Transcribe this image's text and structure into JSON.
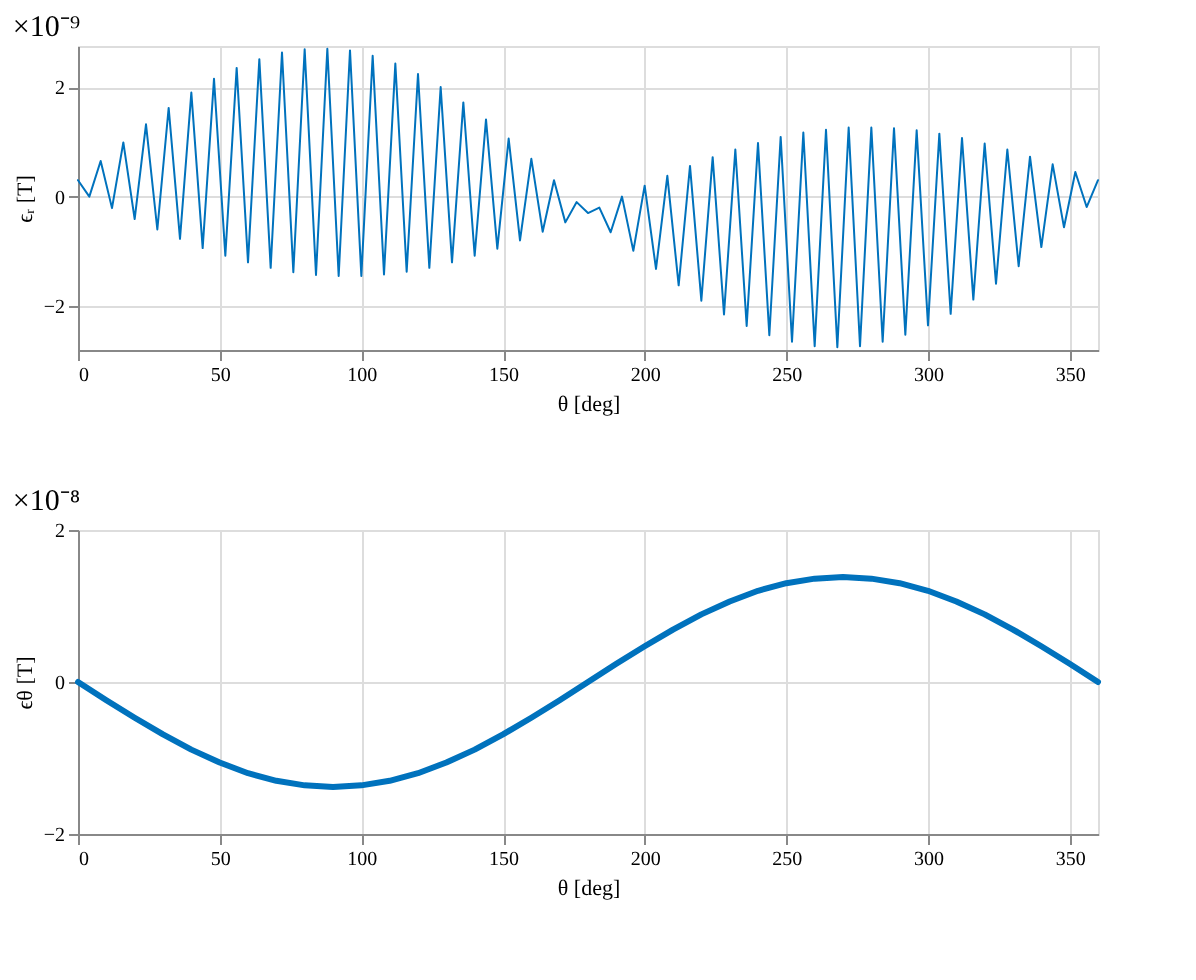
{
  "chart_data": [
    {
      "type": "line",
      "xlabel": "θ [deg]",
      "ylabel": "ϵᵣ [T]",
      "annotations": [
        "×10⁻⁹"
      ],
      "xlim": [
        0,
        360
      ],
      "xticks": [
        0,
        50,
        100,
        150,
        200,
        250,
        300,
        350
      ],
      "ylim": [
        -2.8,
        2.75
      ],
      "yticks": [
        -2,
        0,
        2
      ],
      "grid": true,
      "x": [
        0,
        4,
        8,
        12,
        16,
        20,
        24,
        28,
        32,
        36,
        40,
        44,
        48,
        52,
        56,
        60,
        64,
        68,
        72,
        76,
        80,
        84,
        88,
        92,
        96,
        100,
        104,
        108,
        112,
        116,
        120,
        124,
        128,
        132,
        136,
        140,
        144,
        148,
        152,
        156,
        160,
        164,
        168,
        172,
        176,
        180,
        184,
        188,
        192,
        196,
        200,
        204,
        208,
        212,
        216,
        220,
        224,
        228,
        232,
        236,
        240,
        244,
        248,
        252,
        256,
        260,
        264,
        268,
        272,
        276,
        280,
        284,
        288,
        292,
        296,
        300,
        304,
        308,
        312,
        316,
        320,
        324,
        328,
        332,
        336,
        340,
        344,
        348,
        352,
        356,
        360
      ],
      "series": [
        {
          "color": "#0072bd",
          "values": [
            0.3,
            0.0,
            0.65,
            -0.21,
            0.99,
            -0.41,
            1.32,
            -0.6,
            1.62,
            -0.77,
            1.9,
            -0.94,
            2.15,
            -1.08,
            2.35,
            -1.2,
            2.51,
            -1.3,
            2.63,
            -1.38,
            2.69,
            -1.43,
            2.7,
            -1.45,
            2.67,
            -1.45,
            2.57,
            -1.42,
            2.43,
            -1.37,
            2.24,
            -1.3,
            2.0,
            -1.2,
            1.72,
            -1.08,
            1.41,
            -0.95,
            1.06,
            -0.8,
            0.69,
            -0.64,
            0.3,
            -0.47,
            -0.1,
            -0.3,
            -0.2,
            -0.65,
            0.0,
            -0.99,
            0.2,
            -1.32,
            0.38,
            -1.62,
            0.56,
            -1.9,
            0.72,
            -2.15,
            0.86,
            -2.36,
            0.98,
            -2.53,
            1.09,
            -2.65,
            1.17,
            -2.73,
            1.22,
            -2.75,
            1.26,
            -2.73,
            1.26,
            -2.65,
            1.25,
            -2.52,
            1.21,
            -2.35,
            1.15,
            -2.14,
            1.07,
            -1.88,
            0.97,
            -1.59,
            0.86,
            -1.27,
            0.73,
            -0.92,
            0.59,
            -0.56,
            0.45,
            -0.19,
            0.3
          ]
        }
      ]
    },
    {
      "type": "line",
      "xlabel": "θ [deg]",
      "ylabel": "ϵθ [T]",
      "annotations": [
        "×10⁻⁸"
      ],
      "xlim": [
        0,
        360
      ],
      "xticks": [
        0,
        50,
        100,
        150,
        200,
        250,
        300,
        350
      ],
      "ylim": [
        -2,
        2
      ],
      "yticks": [
        -2,
        0,
        2
      ],
      "grid": true,
      "x": [
        0,
        10,
        20,
        30,
        40,
        50,
        60,
        70,
        80,
        90,
        100,
        110,
        120,
        130,
        140,
        150,
        160,
        170,
        180,
        190,
        200,
        210,
        220,
        230,
        240,
        250,
        260,
        270,
        280,
        290,
        300,
        310,
        320,
        330,
        340,
        350,
        360
      ],
      "series": [
        {
          "color": "#0072bd",
          "values": [
            0,
            -0.24,
            -0.47,
            -0.69,
            -0.89,
            -1.06,
            -1.2,
            -1.3,
            -1.36,
            -1.38,
            -1.36,
            -1.3,
            -1.2,
            -1.06,
            -0.89,
            -0.69,
            -0.47,
            -0.24,
            0,
            0.24,
            0.47,
            0.69,
            0.89,
            1.06,
            1.2,
            1.3,
            1.36,
            1.38,
            1.36,
            1.3,
            1.2,
            1.06,
            0.89,
            0.69,
            0.47,
            0.24,
            0
          ]
        }
      ]
    }
  ]
}
